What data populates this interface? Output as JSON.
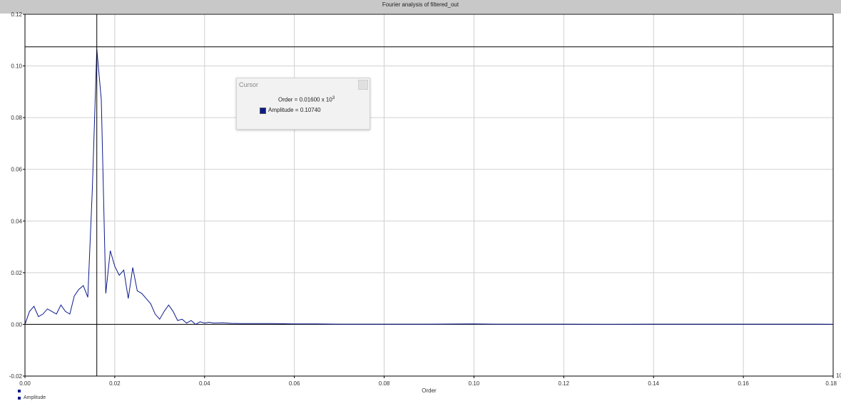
{
  "window": {
    "title": "Fourier analysis of filtered_out"
  },
  "cursor_panel": {
    "title": "Cursor",
    "order_text": "Order = 0.01600 x 10",
    "order_exp": "3",
    "amplitude_text": "Amplitude = 0.10740"
  },
  "legend": {
    "series_label": "Amplitude"
  },
  "colors": {
    "series": "#0c1a8c",
    "grid": "#d0d0d0",
    "frame": "#000000",
    "title_bar": "#c8c8c8"
  },
  "chart_data": {
    "type": "line",
    "title": "Fourier analysis of filtered_out",
    "xlabel": "Order",
    "ylabel": "",
    "x_multiplier_label": "10",
    "xlim": [
      0,
      0.18
    ],
    "ylim": [
      -0.02,
      0.12
    ],
    "x_ticks": [
      0,
      0.02,
      0.04,
      0.06,
      0.08,
      0.1,
      0.12,
      0.14,
      0.16,
      0.18
    ],
    "x_tick_labels": [
      "0.00",
      "0.02",
      "0.04",
      "0.06",
      "0.08",
      "0.10",
      "0.12",
      "0.14",
      "0.16",
      "0.18"
    ],
    "y_ticks": [
      -0.02,
      0,
      0.02,
      0.04,
      0.06,
      0.08,
      0.1,
      0.12
    ],
    "y_tick_labels": [
      "-0.02",
      "0.00",
      "0.02",
      "0.04",
      "0.06",
      "0.08",
      "0.10",
      "0.12"
    ],
    "grid": true,
    "cursor": {
      "x": 0.016,
      "y": 0.1074
    },
    "series": [
      {
        "name": "Amplitude",
        "x": [
          0,
          0.001,
          0.002,
          0.003,
          0.004,
          0.005,
          0.006,
          0.007,
          0.008,
          0.009,
          0.01,
          0.011,
          0.012,
          0.013,
          0.014,
          0.015,
          0.016,
          0.017,
          0.018,
          0.019,
          0.02,
          0.021,
          0.022,
          0.023,
          0.024,
          0.025,
          0.026,
          0.027,
          0.028,
          0.029,
          0.03,
          0.031,
          0.032,
          0.033,
          0.034,
          0.035,
          0.036,
          0.037,
          0.038,
          0.039,
          0.04,
          0.041,
          0.042,
          0.044,
          0.046,
          0.048,
          0.05,
          0.055,
          0.06,
          0.065,
          0.07,
          0.08,
          0.09,
          0.1,
          0.105,
          0.11,
          0.12,
          0.13,
          0.14,
          0.15,
          0.16,
          0.17,
          0.175,
          0.18
        ],
        "y": [
          0.0,
          0.005,
          0.007,
          0.003,
          0.004,
          0.006,
          0.005,
          0.004,
          0.0075,
          0.005,
          0.004,
          0.011,
          0.0135,
          0.015,
          0.0105,
          0.052,
          0.1065,
          0.087,
          0.012,
          0.0285,
          0.0225,
          0.019,
          0.021,
          0.01,
          0.022,
          0.013,
          0.012,
          0.01,
          0.008,
          0.004,
          0.002,
          0.005,
          0.0075,
          0.005,
          0.0015,
          0.002,
          0.0005,
          0.0015,
          0.0,
          0.001,
          0.0005,
          0.0008,
          0.0005,
          0.0006,
          0.0004,
          0.0003,
          0.0003,
          0.0003,
          0.0002,
          0.0002,
          0.0001,
          0.0001,
          0.0001,
          0.0002,
          0.0001,
          0.0001,
          0.0001,
          0.0,
          0.0001,
          0.0001,
          0.0001,
          0.0001,
          0.0001,
          0.0
        ]
      }
    ]
  }
}
